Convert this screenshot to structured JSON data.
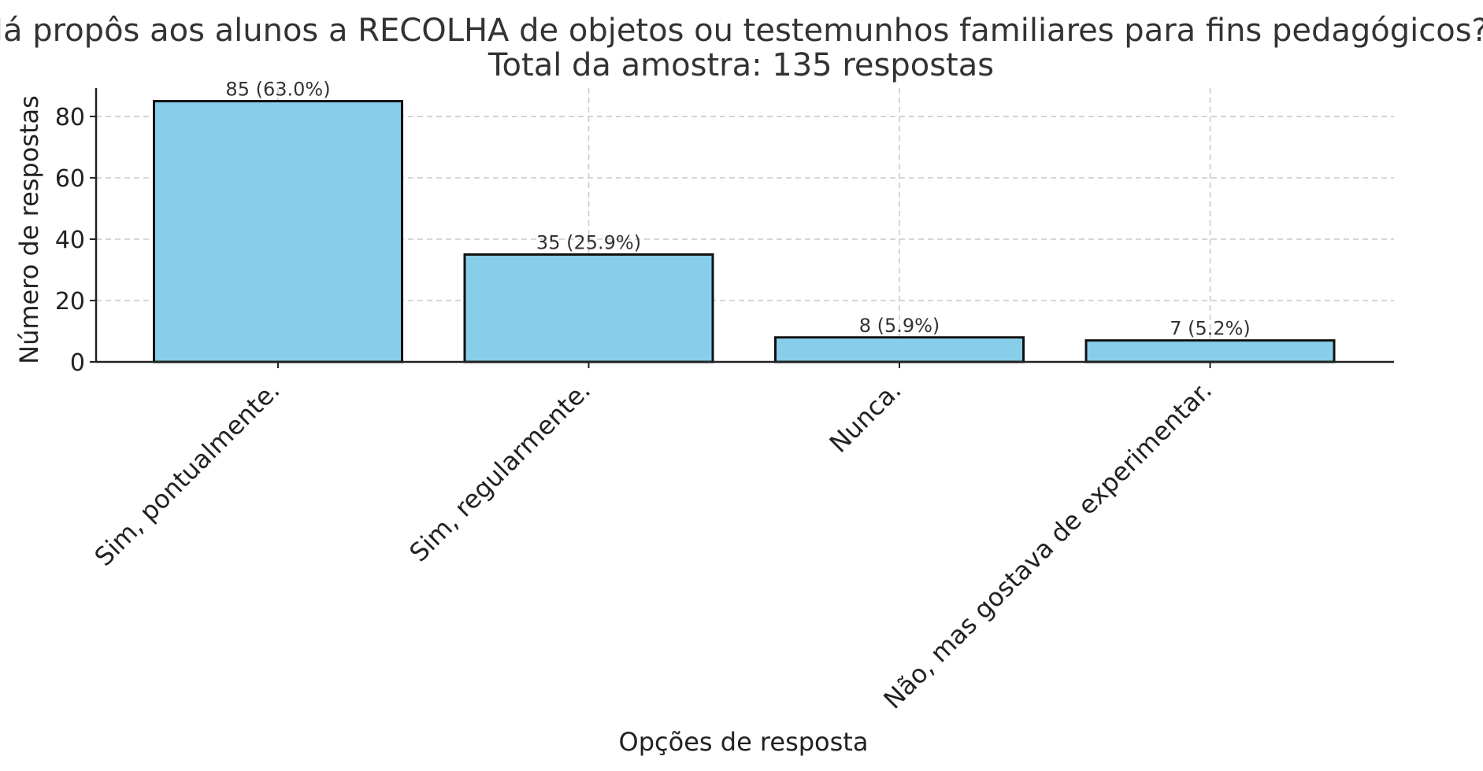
{
  "chart_data": {
    "type": "bar",
    "title": "Já propôs aos alunos a RECOLHA de objetos ou testemunhos familiares para fins pedagógicos?",
    "subtitle": "Total da amostra: 135 respostas",
    "xlabel": "Opções de resposta",
    "ylabel": "Número de respostas",
    "categories": [
      "Sim, pontualmente.",
      "Sim, regularmente.",
      "Nunca.",
      "Não, mas gostava de experimentar."
    ],
    "values": [
      85,
      35,
      8,
      7
    ],
    "data_labels": [
      "85 (63.0%)",
      "35 (25.9%)",
      "8 (5.9%)",
      "7 (5.2%)"
    ],
    "ylim": [
      0,
      89.25
    ],
    "yticks": [
      0,
      20,
      40,
      60,
      80
    ],
    "grid": true,
    "bar_color": "#87CEEB",
    "edge_color": "#111111"
  }
}
